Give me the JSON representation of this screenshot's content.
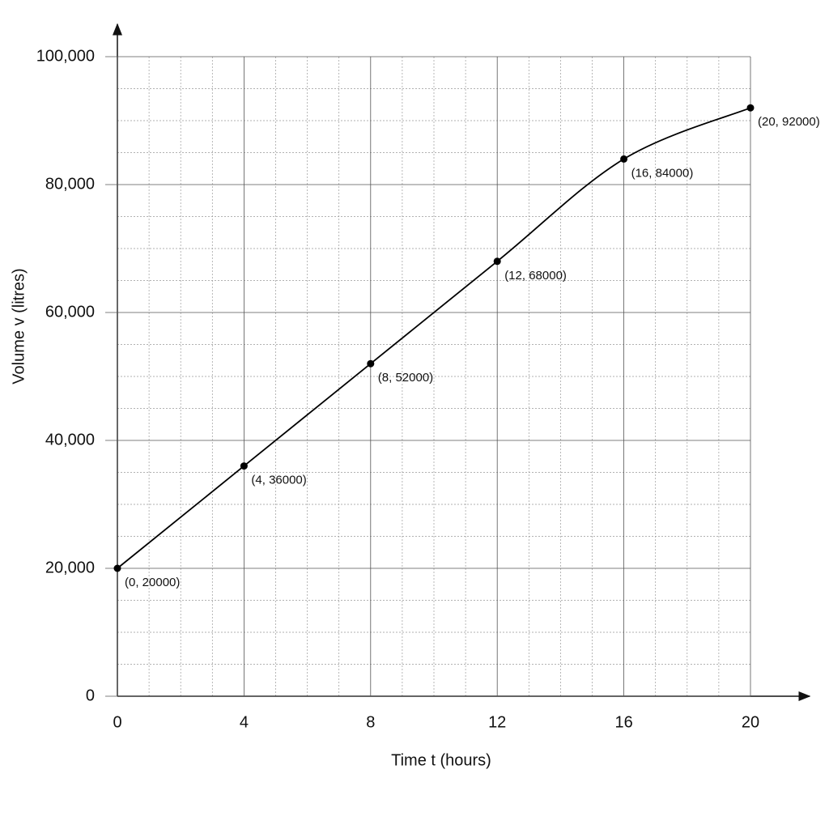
{
  "chart_data": {
    "type": "line",
    "x_label": "Time t (hours)",
    "y_label": "Volume v (litres)",
    "x": [
      0,
      4,
      8,
      12,
      16,
      20
    ],
    "series": [
      {
        "color": "#000000",
        "values": [
          20000,
          36000,
          52000,
          68000,
          84000,
          92000
        ],
        "value_labels": [
          "(0, 20000)",
          "(4, 36000)",
          "(8, 52000)",
          "(12, 68000)",
          "(16, 84000)",
          "(20, 92000)"
        ]
      }
    ],
    "xlim": [
      0,
      20
    ],
    "xticks": [
      0,
      4,
      8,
      12,
      16,
      20
    ],
    "ylim": [
      0,
      100000
    ],
    "yticks": [
      0,
      {
        "value": 20000,
        "label": "20,000"
      },
      {
        "value": 40000,
        "label": "40,000"
      },
      {
        "value": 60000,
        "label": "60,000"
      },
      {
        "value": 80000,
        "label": "80,000"
      },
      {
        "value": 100000,
        "label": "100,000"
      }
    ],
    "grid": true,
    "minor_grid": true
  }
}
